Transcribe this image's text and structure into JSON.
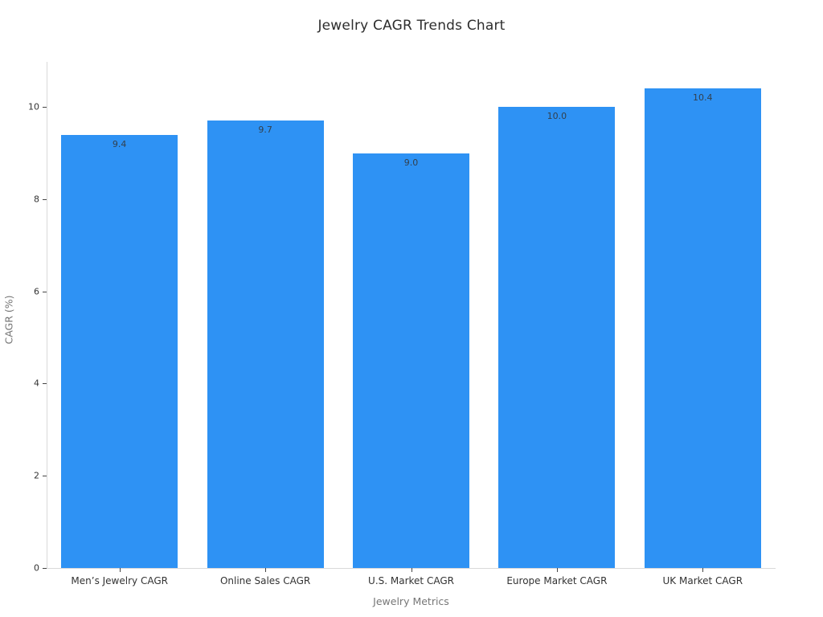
{
  "chart_data": {
    "type": "bar",
    "title": "Jewelry CAGR Trends Chart",
    "xlabel": "Jewelry Metrics",
    "ylabel": "CAGR (%)",
    "categories": [
      "Men’s Jewelry CAGR",
      "Online Sales CAGR",
      "U.S. Market CAGR",
      "Europe Market CAGR",
      "UK Market CAGR"
    ],
    "values": [
      9.4,
      9.7,
      9.0,
      10.0,
      10.4
    ],
    "value_labels": [
      "9.4",
      "9.7",
      "9.0",
      "10.0",
      "10.4"
    ],
    "yticks": [
      0,
      2,
      4,
      6,
      8,
      10
    ],
    "ylim": [
      0,
      10.98
    ],
    "grid": false,
    "legend": "none",
    "bar_color": "#2e92f4",
    "bar_width_fraction": 0.8
  }
}
